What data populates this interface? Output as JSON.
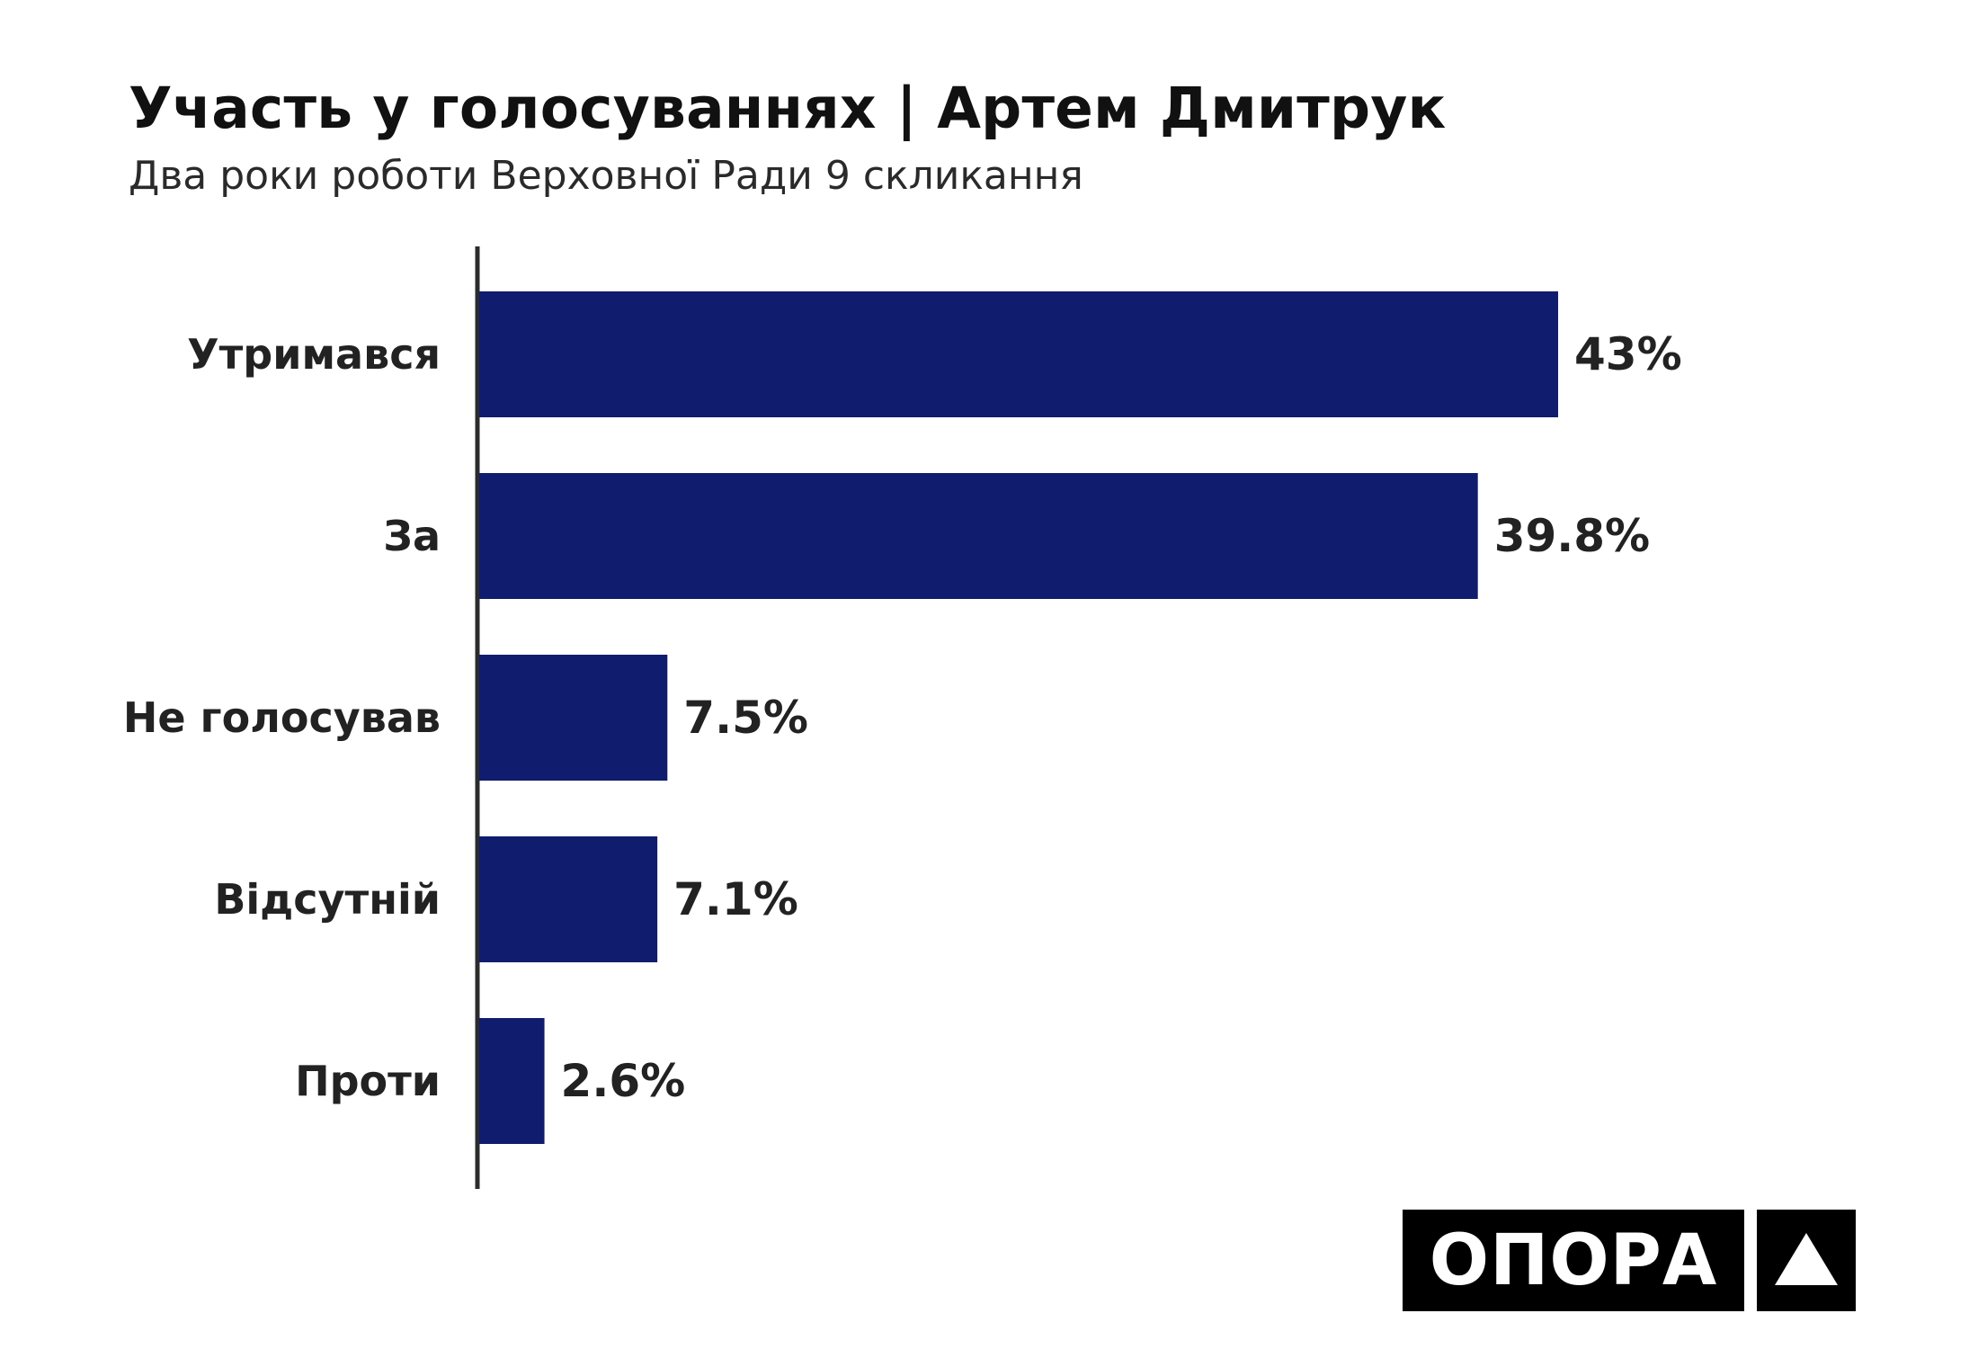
{
  "title": "Участь у голосуваннях | Артем Дмитрук",
  "subtitle": "Два роки роботи Верховної Ради 9 скликання",
  "chart_data": {
    "type": "bar",
    "orientation": "horizontal",
    "categories": [
      "Утримався",
      "За",
      "Не голосував",
      "Відсутній",
      "Проти"
    ],
    "values": [
      43,
      39.8,
      7.5,
      7.1,
      2.6
    ],
    "value_labels": [
      "43%",
      "39.8%",
      "7.5%",
      "7.1%",
      "2.6%"
    ],
    "unit": "%",
    "xlim": [
      0,
      43
    ],
    "grid": false,
    "bar_color": "#101c6e",
    "axis_color": "#2b2b2b"
  },
  "logo": {
    "text": "ОПОРА",
    "mark_icon": "triangle-icon",
    "background": "#000000",
    "foreground": "#ffffff"
  }
}
